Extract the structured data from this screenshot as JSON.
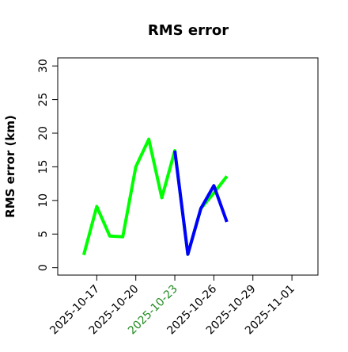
{
  "chart_data": {
    "type": "line",
    "title": "RMS error",
    "ylabel": "RMS error (km)",
    "x": [
      "2025-10-16",
      "2025-10-17",
      "2025-10-18",
      "2025-10-19",
      "2025-10-20",
      "2025-10-21",
      "2025-10-22",
      "2025-10-23",
      "2025-10-24",
      "2025-10-25",
      "2025-10-26",
      "2025-10-27"
    ],
    "series": [
      {
        "name": "green",
        "color": "#00ff00",
        "values": [
          1.9,
          9.1,
          4.7,
          4.6,
          15.0,
          19.1,
          10.4,
          17.4,
          2.0,
          8.8,
          11.1,
          13.6
        ]
      },
      {
        "name": "blue",
        "color": "#0000ff",
        "values": [
          null,
          null,
          null,
          null,
          null,
          null,
          null,
          17.4,
          2.0,
          8.8,
          12.2,
          6.8
        ]
      }
    ],
    "xlim": [
      "2025-10-14",
      "2025-11-03"
    ],
    "xticks": [
      "2025-10-17",
      "2025-10-20",
      "2025-10-23",
      "2025-10-26",
      "2025-10-29",
      "2025-11-01"
    ],
    "xtick_colors": [
      "#000000",
      "#000000",
      "#228b22",
      "#000000",
      "#000000",
      "#000000"
    ],
    "ylim": [
      -1.1,
      31.2
    ],
    "yticks": [
      0,
      5,
      10,
      15,
      20,
      25,
      30
    ]
  }
}
